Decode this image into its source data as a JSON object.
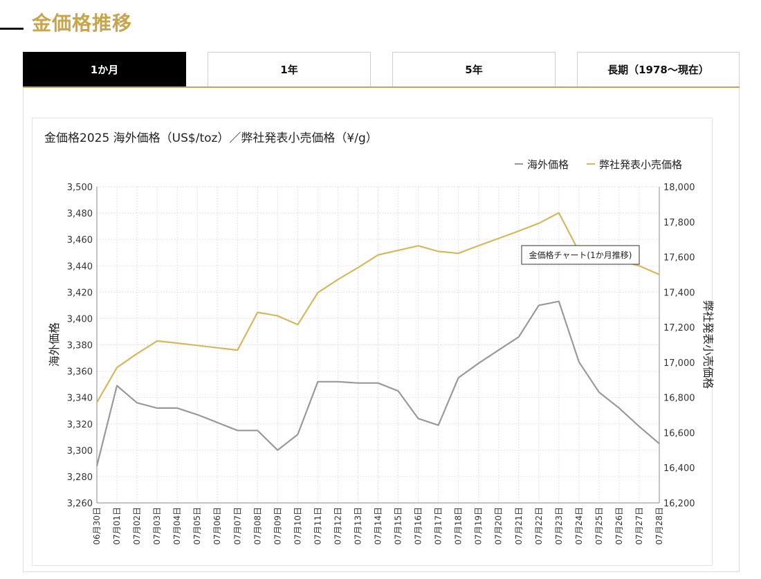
{
  "section_title": "金価格推移",
  "tabs": [
    {
      "label": "1か月",
      "active": true
    },
    {
      "label": "1年",
      "active": false
    },
    {
      "label": "5年",
      "active": false
    },
    {
      "label": "長期（1978～現在）",
      "active": false
    }
  ],
  "tooltip": "金価格チャート(1か月推移)",
  "colors": {
    "accent": "#c8a44a",
    "overseas": "#999999",
    "retail": "#d6b75c"
  },
  "chart_data": {
    "type": "line",
    "title": "金価格2025 海外価格（US$/toz）／弊社発表小売価格（¥/g）",
    "legend_position": "top-right",
    "grid": true,
    "x": [
      "06月30日",
      "07月01日",
      "07月02日",
      "07月03日",
      "07月04日",
      "07月05日",
      "07月06日",
      "07月07日",
      "07月08日",
      "07月09日",
      "07月10日",
      "07月11日",
      "07月12日",
      "07月13日",
      "07月14日",
      "07月15日",
      "07月16日",
      "07月17日",
      "07月18日",
      "07月19日",
      "07月20日",
      "07月21日",
      "07月22日",
      "07月23日",
      "07月24日",
      "07月25日",
      "07月26日",
      "07月27日",
      "07月28日"
    ],
    "ylabel_left": "海外価格",
    "ylabel_right": "弊社発表小売価格",
    "ylim_left": [
      3260,
      3500
    ],
    "ylim_right": [
      16200,
      18000
    ],
    "yticks_left": [
      "3,260",
      "3,280",
      "3,300",
      "3,320",
      "3,340",
      "3,360",
      "3,380",
      "3,400",
      "3,420",
      "3,440",
      "3,460",
      "3,480",
      "3,500"
    ],
    "yticks_right": [
      "16,200",
      "16,400",
      "16,600",
      "16,800",
      "17,000",
      "17,200",
      "17,400",
      "17,600",
      "17,800",
      "18,000"
    ],
    "series": [
      {
        "name": "海外価格",
        "axis": "left",
        "values": [
          3288,
          3349,
          3336,
          3332,
          3332,
          3327,
          3321,
          3315,
          3315,
          3300,
          3312,
          3352,
          3352,
          3351,
          3351,
          3345,
          3324,
          3319,
          3355,
          3366,
          3376,
          3386,
          3410,
          3413,
          3367,
          3344,
          3332,
          3318,
          3305
        ]
      },
      {
        "name": "弊社発表小売価格",
        "axis": "right",
        "values": [
          16772,
          16971,
          17050,
          17122,
          17110,
          17097,
          17083,
          17070,
          17285,
          17265,
          17215,
          17397,
          17472,
          17540,
          17612,
          17638,
          17664,
          17632,
          17621,
          17665,
          17706,
          17748,
          17792,
          17852,
          17631,
          17592,
          17580,
          17550,
          17500
        ]
      }
    ]
  }
}
